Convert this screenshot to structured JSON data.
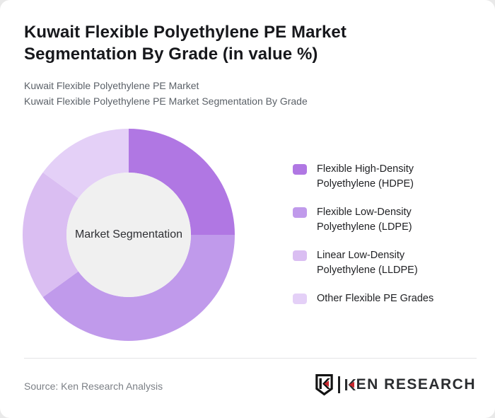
{
  "page": {
    "background_color": "#e9e9e9",
    "card_color": "#ffffff"
  },
  "header": {
    "title": "Kuwait Flexible Polyethylene PE Market Segmentation By Grade (in value %)",
    "subtitle_line1": "Kuwait Flexible Polyethylene PE Market",
    "subtitle_line2": "Kuwait Flexible Polyethylene PE Market Segmentation By Grade"
  },
  "chart_data": {
    "type": "pie",
    "variant": "donut",
    "title": "Kuwait Flexible Polyethylene PE Market Segmentation By Grade (in value %)",
    "center_label": "Market Segmentation",
    "categories": [
      "Flexible High-Density Polyethylene (HDPE)",
      "Flexible Low-Density Polyethylene (LDPE)",
      "Linear Low-Density Polyethylene (LLDPE)",
      "Other Flexible PE Grades"
    ],
    "values": [
      25,
      40,
      20,
      15
    ],
    "unit": "%",
    "colors": [
      "#b077e3",
      "#c09aeb",
      "#dabef2",
      "#e4d0f7"
    ],
    "hole_color": "#f0f0f0",
    "start_angle_deg": 0,
    "clockwise": true,
    "legend_position": "right",
    "data_labels_shown": false
  },
  "footer": {
    "source": "Source: Ken Research Analysis",
    "logo": {
      "badge_letter": "K",
      "brand": "KEN RESEARCH",
      "brand_rest": "EN RESEARCH",
      "accent_red": "#c9252c",
      "ink": "#2b2d30"
    }
  }
}
